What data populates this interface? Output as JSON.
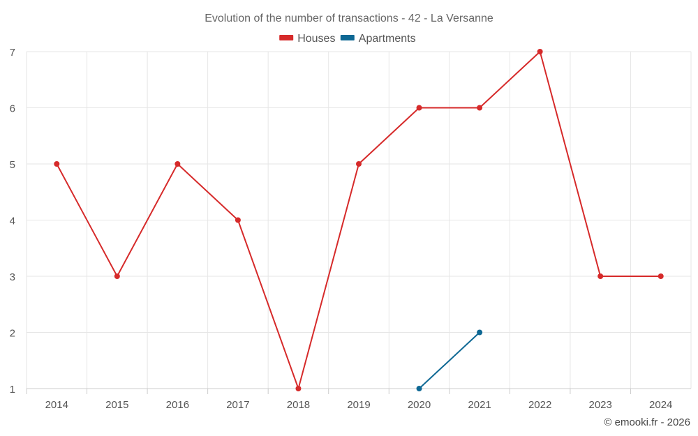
{
  "chart_data": {
    "type": "line",
    "title": "Evolution of the number of transactions - 42 - La Versanne",
    "xlabel": "",
    "ylabel": "",
    "categories": [
      "2014",
      "2015",
      "2016",
      "2017",
      "2018",
      "2019",
      "2020",
      "2021",
      "2022",
      "2023",
      "2024"
    ],
    "ylim": [
      1,
      7
    ],
    "yticks": [
      1,
      2,
      3,
      4,
      5,
      6,
      7
    ],
    "grid": true,
    "legend_position": "top-center",
    "series": [
      {
        "name": "Houses",
        "color": "#d62a2a",
        "values": [
          5,
          3,
          5,
          4,
          1,
          5,
          6,
          6,
          7,
          3,
          3
        ]
      },
      {
        "name": "Apartments",
        "color": "#0e6894",
        "values": [
          null,
          null,
          null,
          null,
          null,
          null,
          1,
          2,
          null,
          null,
          null
        ]
      }
    ],
    "credit": "© emooki.fr - 2026"
  }
}
